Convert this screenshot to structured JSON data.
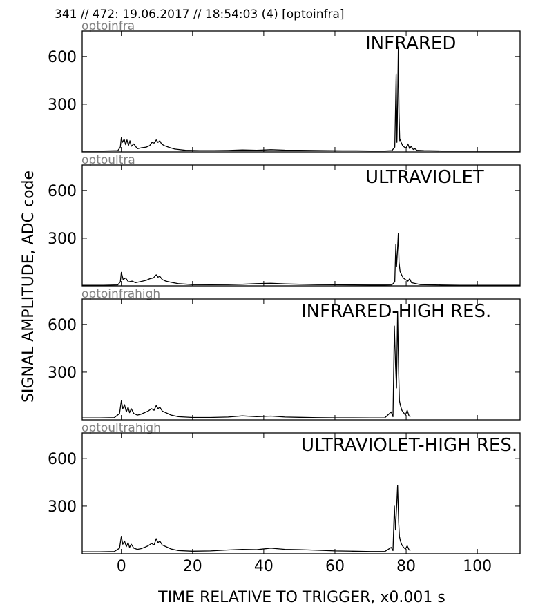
{
  "header": "341 // 472:   19.06.2017 // 18:54:03 (4)  [optoinfra]",
  "ylabel": "SIGNAL AMPLITUDE,  ADC code",
  "xlabel": "TIME RELATIVE TO TRIGGER,   x0.001 s",
  "chart_data": [
    {
      "type": "line",
      "channel": "optoinfra",
      "title": "INFRARED",
      "xlim": [
        -11,
        112
      ],
      "ylim": [
        0,
        760
      ],
      "yticks": [
        300,
        600
      ],
      "xticks": [
        0,
        20,
        40,
        60,
        80,
        100
      ],
      "series": [
        {
          "x": [
            -11,
            -5,
            -1,
            -0.3,
            0,
            0.3,
            0.8,
            1.2,
            1.6,
            2.0,
            2.4,
            2.8,
            3.5,
            4.5,
            5.5,
            7,
            8,
            8.6,
            9.2,
            9.8,
            10.3,
            10.8,
            11.3,
            12,
            13.5,
            15,
            18,
            22,
            26,
            30,
            34,
            38,
            42,
            46,
            50,
            54,
            58,
            62,
            66,
            70,
            74,
            76,
            76.8,
            77.2,
            77.4,
            77.6,
            77.8,
            78.0,
            78.2,
            78.4,
            78.6,
            79.0,
            79.5,
            80.0,
            80.5,
            81.0,
            81.4,
            82.0,
            82.5,
            83.0,
            85,
            90,
            95,
            100,
            105,
            112
          ],
          "y": [
            6,
            6,
            8,
            30,
            90,
            60,
            80,
            45,
            75,
            40,
            70,
            35,
            50,
            20,
            25,
            30,
            40,
            60,
            55,
            75,
            60,
            70,
            50,
            40,
            28,
            18,
            10,
            8,
            8,
            9,
            12,
            10,
            14,
            11,
            10,
            9,
            8,
            7,
            7,
            6,
            6,
            8,
            30,
            490,
            60,
            300,
            660,
            250,
            70,
            80,
            60,
            40,
            30,
            25,
            50,
            20,
            35,
            15,
            20,
            10,
            8,
            6,
            6,
            6,
            6,
            6
          ]
        }
      ]
    },
    {
      "type": "line",
      "channel": "optoultra",
      "title": "ULTRAVIOLET",
      "xlim": [
        -11,
        112
      ],
      "ylim": [
        0,
        760
      ],
      "yticks": [
        300,
        600
      ],
      "xticks": [
        0,
        20,
        40,
        60,
        80,
        100
      ],
      "series": [
        {
          "x": [
            -11,
            -5,
            -1,
            -0.3,
            0,
            0.5,
            1.2,
            2.0,
            3,
            4,
            5,
            6,
            7,
            8,
            9,
            9.8,
            10.3,
            10.8,
            11.5,
            12.5,
            14,
            16,
            20,
            25,
            30,
            34,
            38,
            42,
            46,
            50,
            55,
            60,
            65,
            70,
            74,
            76,
            76.8,
            77.1,
            77.3,
            77.5,
            77.8,
            78.0,
            78.3,
            78.7,
            79.2,
            79.8,
            80.5,
            81.0,
            81.5,
            82.5,
            84,
            90,
            95,
            100,
            105,
            112
          ],
          "y": [
            4,
            4,
            6,
            25,
            85,
            40,
            50,
            25,
            30,
            20,
            25,
            30,
            35,
            45,
            50,
            70,
            55,
            60,
            40,
            30,
            22,
            14,
            8,
            7,
            8,
            10,
            14,
            16,
            12,
            10,
            8,
            7,
            6,
            5,
            5,
            6,
            25,
            260,
            120,
            200,
            330,
            150,
            90,
            70,
            50,
            40,
            30,
            45,
            20,
            15,
            8,
            5,
            4,
            4,
            4,
            4
          ]
        }
      ]
    },
    {
      "type": "line",
      "channel": "optoinfrahigh",
      "title": "INFRARED-HIGH RES.",
      "xlim": [
        -11,
        112
      ],
      "ylim": [
        0,
        760
      ],
      "yticks": [
        300,
        600
      ],
      "xticks": [
        0,
        20,
        40,
        60,
        80,
        100
      ],
      "series": [
        {
          "x": [
            -11,
            -6,
            -2,
            -0.5,
            0,
            0.4,
            0.9,
            1.4,
            1.9,
            2.3,
            2.8,
            3.5,
            4.5,
            5.5,
            6.5,
            7.5,
            8.5,
            9.2,
            9.8,
            10.3,
            10.8,
            11.5,
            12.5,
            14,
            16,
            20,
            25,
            30,
            34,
            38,
            42,
            46,
            50,
            55,
            60,
            65,
            70,
            74,
            75.8,
            76.3,
            76.7,
            77.0,
            77.3,
            77.6,
            77.9,
            78.1,
            78.4,
            78.8,
            79.3,
            79.8,
            80.3,
            80.8,
            81.2
          ],
          "y": [
            12,
            12,
            14,
            40,
            120,
            70,
            95,
            50,
            80,
            45,
            70,
            40,
            30,
            35,
            45,
            55,
            70,
            60,
            90,
            70,
            80,
            55,
            45,
            30,
            20,
            15,
            15,
            18,
            25,
            20,
            24,
            18,
            16,
            14,
            13,
            13,
            12,
            13,
            50,
            20,
            590,
            350,
            200,
            680,
            300,
            120,
            90,
            60,
            45,
            30,
            60,
            25,
            20
          ]
        }
      ]
    },
    {
      "type": "line",
      "channel": "optoultrahigh",
      "title": "ULTRAVIOLET-HIGH RES.",
      "xlim": [
        -11,
        112
      ],
      "ylim": [
        0,
        760
      ],
      "yticks": [
        300,
        600
      ],
      "xticks": [
        0,
        20,
        40,
        60,
        80,
        100
      ],
      "series": [
        {
          "x": [
            -11,
            -6,
            -2,
            -0.5,
            0,
            0.4,
            0.9,
            1.4,
            1.9,
            2.3,
            2.8,
            3.5,
            4.5,
            5.5,
            6.5,
            7.5,
            8.5,
            9.2,
            9.8,
            10.3,
            10.8,
            11.5,
            12.5,
            14,
            16,
            20,
            25,
            30,
            34,
            38,
            42,
            46,
            50,
            55,
            60,
            65,
            70,
            74,
            75.8,
            76.3,
            76.7,
            77.0,
            77.3,
            77.6,
            77.9,
            78.1,
            78.4,
            78.8,
            79.3,
            79.8,
            80.3,
            80.8,
            81.2
          ],
          "y": [
            12,
            12,
            14,
            35,
            110,
            60,
            80,
            45,
            70,
            40,
            60,
            35,
            28,
            32,
            40,
            50,
            65,
            55,
            95,
            70,
            80,
            55,
            45,
            30,
            20,
            16,
            18,
            24,
            28,
            26,
            35,
            28,
            26,
            22,
            18,
            16,
            14,
            14,
            40,
            20,
            300,
            150,
            280,
            430,
            200,
            110,
            80,
            55,
            40,
            30,
            50,
            25,
            20
          ]
        }
      ]
    }
  ]
}
